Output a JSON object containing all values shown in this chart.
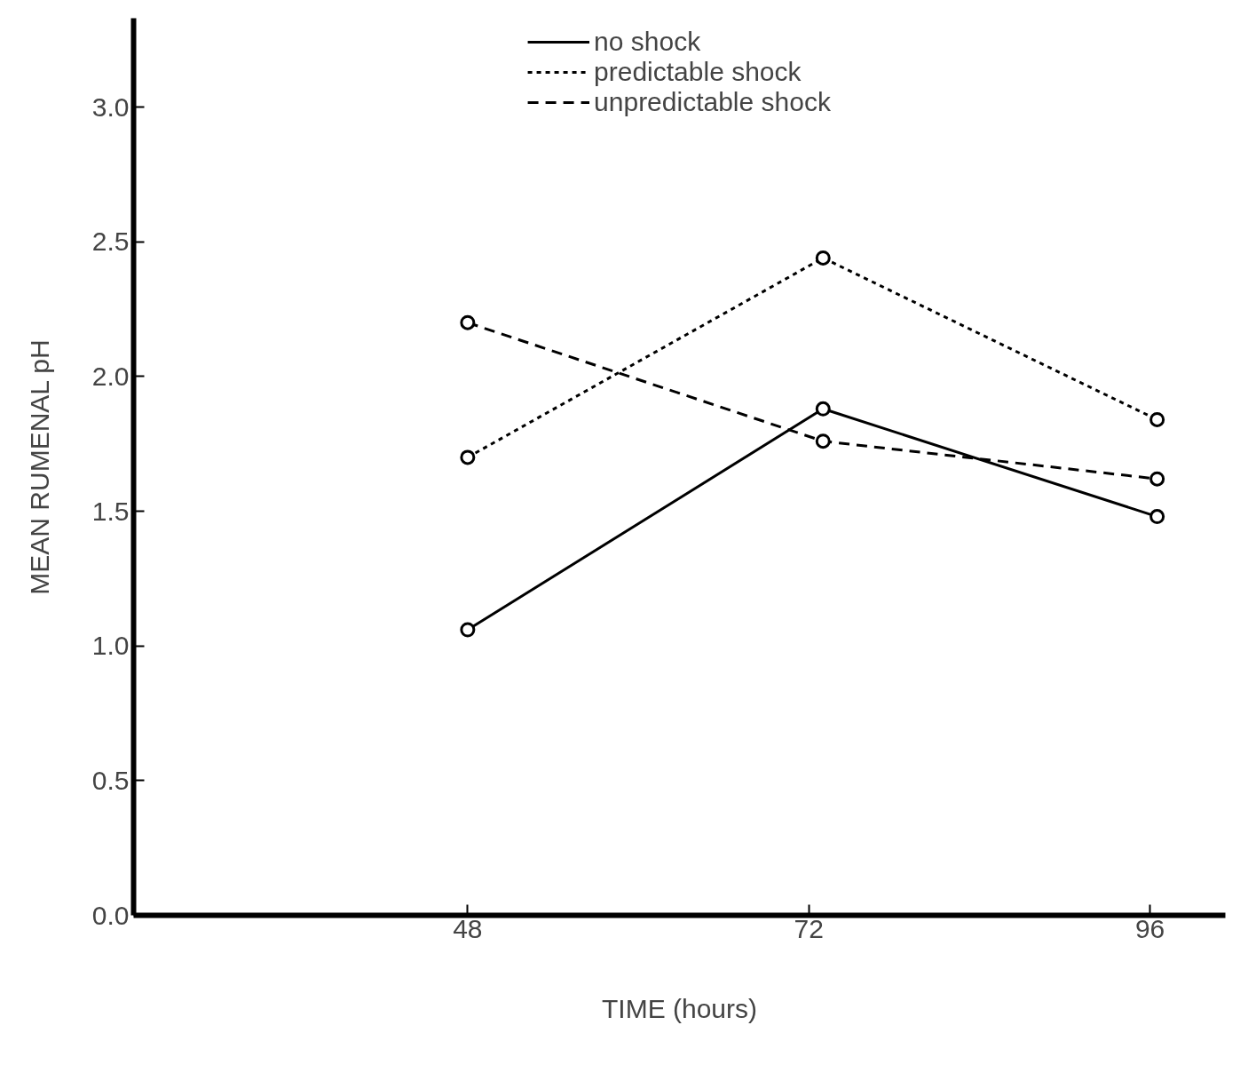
{
  "chart_data": {
    "type": "line",
    "xlabel": "TIME (hours)",
    "ylabel": "MEAN RUMENAL pH",
    "xlim": [
      24.5,
      101.3
    ],
    "ylim": [
      0,
      3.33
    ],
    "xticks": [
      48,
      72,
      96
    ],
    "yticks": [
      {
        "value": 0,
        "label": "0.0"
      },
      {
        "value": 0.5,
        "label": "0.5"
      },
      {
        "value": 1,
        "label": "1.0"
      },
      {
        "value": 1.5,
        "label": "1.5"
      },
      {
        "value": 2,
        "label": "2.0"
      },
      {
        "value": 2.5,
        "label": "2.5"
      },
      {
        "value": 3,
        "label": "3.0"
      }
    ],
    "marker": "circle",
    "legend": "top",
    "grid": false,
    "series": [
      {
        "name": "no shock",
        "color": "#000000",
        "line_style": "solid",
        "x": [
          48,
          73,
          96.5
        ],
        "values": [
          1.06,
          1.88,
          1.48
        ]
      },
      {
        "name": "predictable shock",
        "color": "#000000",
        "line_style": "dotted",
        "x": [
          48,
          73,
          96.5
        ],
        "values": [
          1.7,
          2.44,
          1.84
        ]
      },
      {
        "name": "unpredictable shock",
        "color": "#000000",
        "line_style": "dashed",
        "x": [
          48,
          73,
          96.5
        ],
        "values": [
          2.2,
          1.76,
          1.62
        ]
      }
    ]
  }
}
